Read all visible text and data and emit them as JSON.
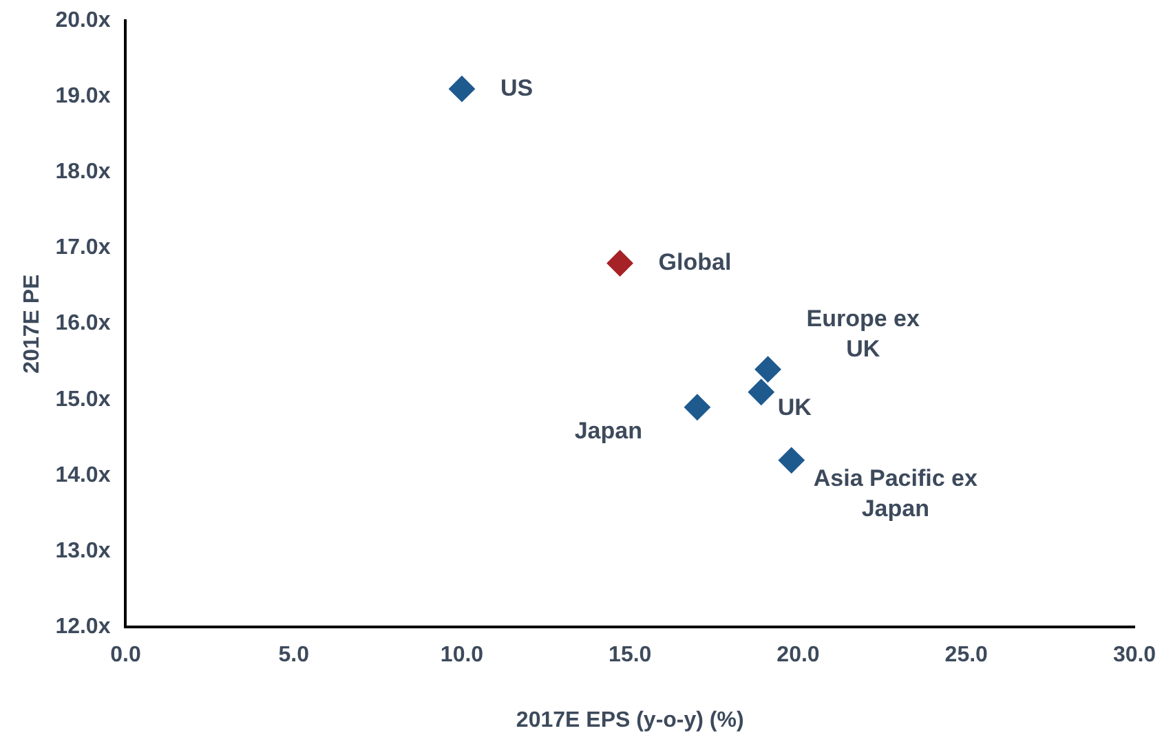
{
  "chart_data": {
    "type": "scatter",
    "xlabel": "2017E EPS (y-o-y) (%)",
    "ylabel": "2017E PE",
    "marker": "diamond",
    "grid": false,
    "legend": false,
    "xlim": [
      0,
      30
    ],
    "xticks": [
      {
        "value": 0,
        "label": "0.0"
      },
      {
        "value": 5,
        "label": "5.0"
      },
      {
        "value": 10,
        "label": "10.0"
      },
      {
        "value": 15,
        "label": "15.0"
      },
      {
        "value": 20,
        "label": "20.0"
      },
      {
        "value": 25,
        "label": "25.0"
      },
      {
        "value": 30,
        "label": "30.0"
      }
    ],
    "ylim": [
      12,
      20
    ],
    "yticks": [
      {
        "value": 12,
        "label": "12.0x"
      },
      {
        "value": 13,
        "label": "13.0x"
      },
      {
        "value": 14,
        "label": "14.0x"
      },
      {
        "value": 15,
        "label": "15.0x"
      },
      {
        "value": 16,
        "label": "16.0x"
      },
      {
        "value": 17,
        "label": "17.0x"
      },
      {
        "value": 18,
        "label": "18.0x"
      },
      {
        "value": 19,
        "label": "19.0x"
      },
      {
        "value": 20,
        "label": "20.0x"
      }
    ],
    "series": [
      {
        "name": "US",
        "color": "#1f5a8f",
        "x": [
          10.0
        ],
        "values": [
          19.1
        ]
      },
      {
        "name": "Global",
        "color": "#a52226",
        "x": [
          14.7
        ],
        "values": [
          16.8
        ]
      },
      {
        "name": "Europe ex UK",
        "color": "#1f5a8f",
        "x": [
          19.1
        ],
        "values": [
          15.4
        ]
      },
      {
        "name": "UK",
        "color": "#1f5a8f",
        "x": [
          18.9
        ],
        "values": [
          15.1
        ]
      },
      {
        "name": "Japan",
        "color": "#1f5a8f",
        "x": [
          17.0
        ],
        "values": [
          14.9
        ]
      },
      {
        "name": "Asia Pacific ex Japan",
        "color": "#1f5a8f",
        "x": [
          19.8
        ],
        "values": [
          14.2
        ]
      }
    ]
  }
}
